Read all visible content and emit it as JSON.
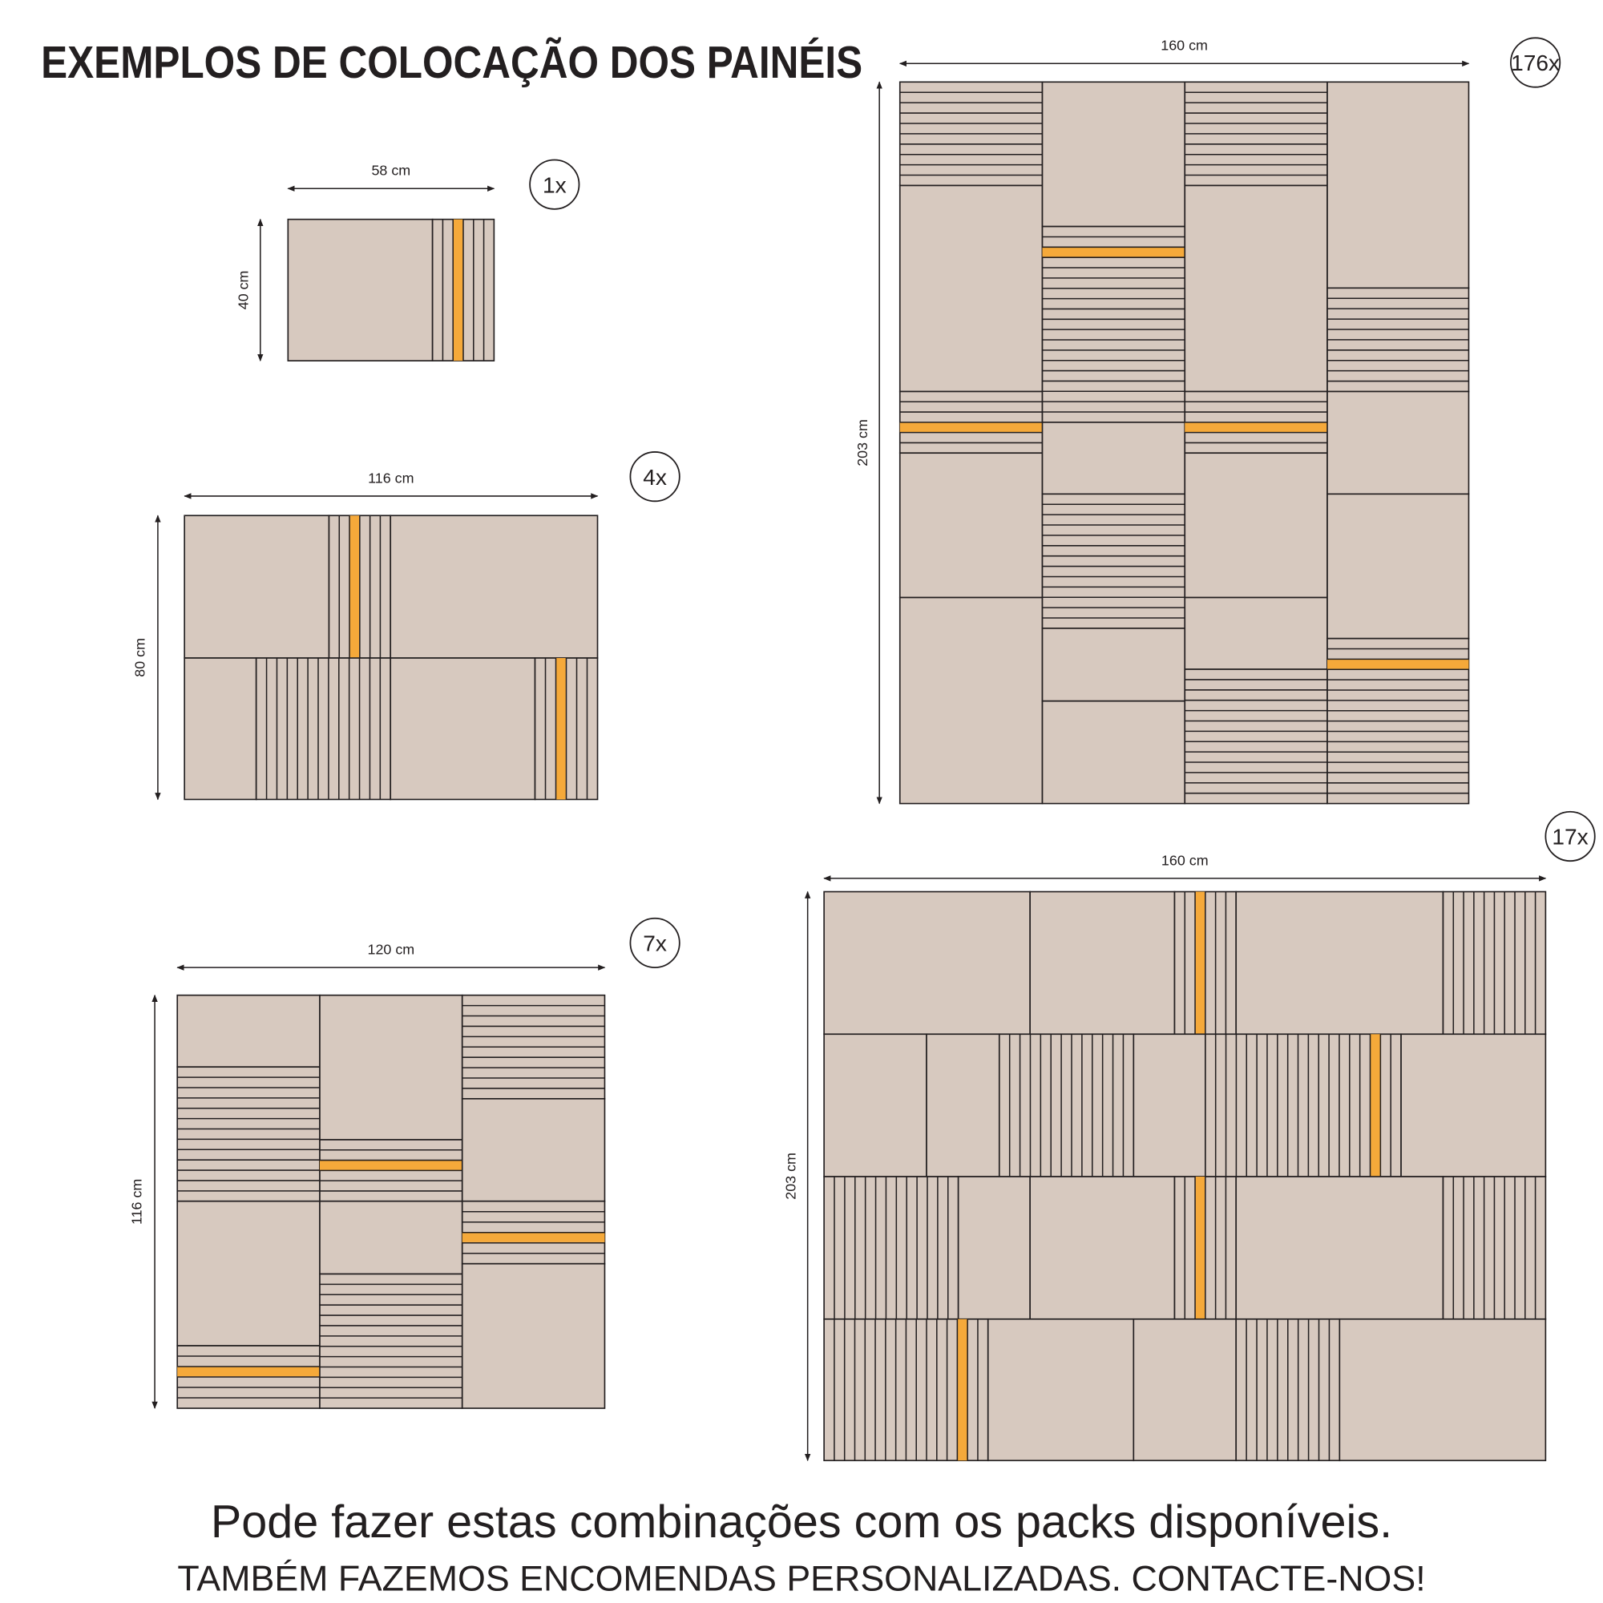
{
  "title": "EXEMPLOS DE COLOCAÇÃO DOS PAINÉIS",
  "examples": [
    {
      "count": "1x",
      "width": "58 cm",
      "height": "40 cm"
    },
    {
      "count": "4x",
      "width": "116 cm",
      "height": "80 cm"
    },
    {
      "count": "7x",
      "width": "120 cm",
      "height": "116 cm"
    },
    {
      "count": "176x",
      "width": "160 cm",
      "height": "203 cm"
    },
    {
      "count": "17x",
      "width": "160 cm",
      "height": "203 cm"
    }
  ],
  "footer": {
    "line1": "Pode fazer estas combinações com os packs disponíveis.",
    "line2": "TAMBÉM FAZEMOS ENCOMENDAS PERSONALIZADAS. CONTACTE-NOS!"
  }
}
